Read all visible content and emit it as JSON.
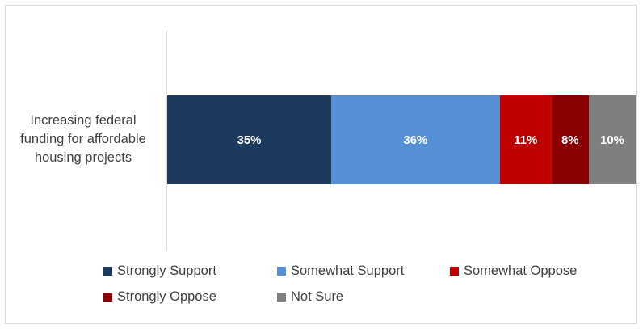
{
  "colors": {
    "strongly_support": "#1b3a5e",
    "somewhat_support": "#5590d6",
    "somewhat_oppose": "#c00000",
    "strongly_oppose": "#8b0000",
    "not_sure": "#7f7f7f"
  },
  "chart_data": {
    "type": "bar",
    "orientation": "horizontal",
    "stacked": true,
    "percent": true,
    "categories": [
      "Increasing federal\nfunding for affordable\nhousing projects"
    ],
    "series": [
      {
        "name": "Strongly Support",
        "values": [
          35
        ],
        "label": "35%",
        "color": "#1b3a5e"
      },
      {
        "name": "Somewhat Support",
        "values": [
          36
        ],
        "label": "36%",
        "color": "#5590d6"
      },
      {
        "name": "Somewhat Oppose",
        "values": [
          11
        ],
        "label": "11%",
        "color": "#c00000"
      },
      {
        "name": "Strongly Oppose",
        "values": [
          8
        ],
        "label": "8%",
        "color": "#8b0000"
      },
      {
        "name": "Not Sure",
        "values": [
          10
        ],
        "label": "10%",
        "color": "#7f7f7f"
      }
    ],
    "xlim": [
      0,
      100
    ],
    "grid": false,
    "legend_position": "bottom"
  }
}
